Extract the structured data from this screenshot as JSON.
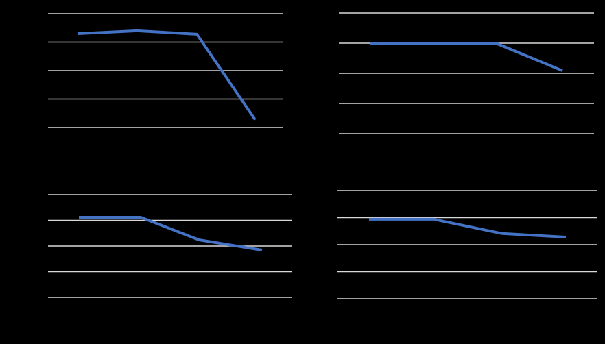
{
  "colors": {
    "background": "#000000",
    "gridline": "#d9d9d9",
    "series": "#4472c4"
  },
  "chart_data": [
    {
      "type": "line",
      "grid": true,
      "ylim": [
        0,
        4
      ],
      "x": [
        1,
        2,
        3,
        4
      ],
      "series": [
        {
          "values": [
            3.3,
            3.4,
            3.28,
            0.27
          ]
        }
      ]
    },
    {
      "type": "line",
      "grid": true,
      "ylim": [
        0,
        4
      ],
      "x": [
        1,
        2,
        3,
        4
      ],
      "series": [
        {
          "values": [
            3.0,
            3.0,
            2.98,
            2.09
          ]
        }
      ]
    },
    {
      "type": "line",
      "grid": true,
      "ylim": [
        0,
        4
      ],
      "x": [
        1,
        2,
        3,
        4
      ],
      "series": [
        {
          "values": [
            3.12,
            3.12,
            2.24,
            1.84
          ]
        }
      ]
    },
    {
      "type": "line",
      "grid": true,
      "ylim": [
        0,
        4
      ],
      "x": [
        1,
        2,
        3,
        4
      ],
      "series": [
        {
          "values": [
            2.94,
            2.94,
            2.41,
            2.28
          ]
        }
      ]
    }
  ]
}
